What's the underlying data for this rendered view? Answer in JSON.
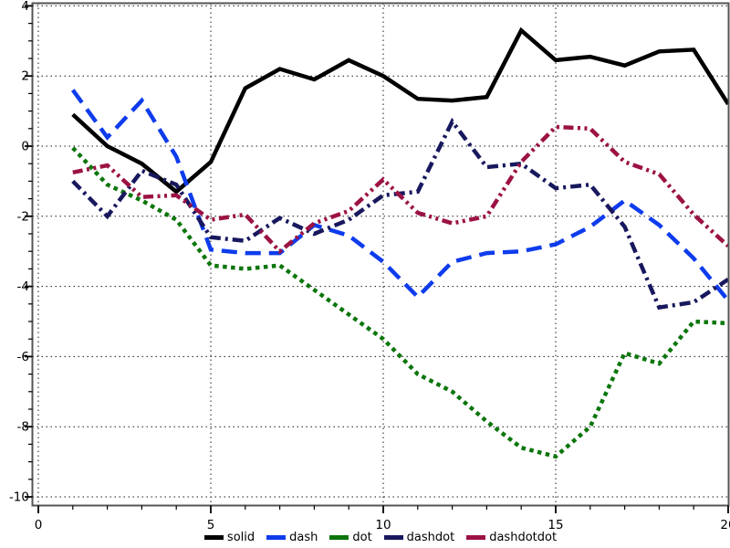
{
  "chart_data": {
    "type": "line",
    "title": "",
    "xlabel": "",
    "ylabel": "",
    "xlim": [
      -0.17,
      20.02
    ],
    "ylim": [
      -10.25,
      4.08
    ],
    "grid": true,
    "grid_style": "dotted",
    "legend_position": "bottom-center",
    "x_ticks_major": [
      0,
      5,
      10,
      15,
      20
    ],
    "x_tick_minor_step": 1,
    "y_ticks_major": [
      4,
      2,
      0,
      -2,
      -4,
      -6,
      -8,
      -10
    ],
    "y_tick_minor_step": 0.5,
    "x": [
      1,
      2,
      3,
      4,
      5,
      6,
      7,
      8,
      9,
      10,
      11,
      12,
      13,
      14,
      15,
      16,
      17,
      18,
      19,
      20
    ],
    "series": [
      {
        "name": "solid",
        "style": "solid",
        "color": "#000000",
        "values": [
          0.9,
          0.0,
          -0.5,
          -1.3,
          -0.45,
          1.65,
          2.2,
          1.9,
          2.45,
          2.0,
          1.35,
          1.3,
          1.4,
          3.3,
          2.45,
          2.55,
          2.3,
          2.7,
          2.75,
          1.2
        ]
      },
      {
        "name": "dash",
        "style": "dash",
        "color": "#0e3cec",
        "values": [
          1.6,
          0.25,
          1.3,
          -0.3,
          -2.95,
          -3.05,
          -3.05,
          -2.25,
          -2.55,
          -3.3,
          -4.3,
          -3.3,
          -3.05,
          -3.0,
          -2.8,
          -2.3,
          -1.55,
          -2.25,
          -3.2,
          -4.4
        ]
      },
      {
        "name": "dot",
        "style": "dot",
        "color": "#0c760c",
        "values": [
          -0.05,
          -1.1,
          -1.55,
          -2.1,
          -3.4,
          -3.5,
          -3.4,
          -4.1,
          -4.8,
          -5.5,
          -6.5,
          -7.0,
          -7.85,
          -8.6,
          -8.85,
          -8.0,
          -5.9,
          -6.2,
          -5.0,
          -5.05
        ]
      },
      {
        "name": "dashdot",
        "style": "dashdot",
        "color": "#18185e",
        "values": [
          -1.0,
          -2.0,
          -0.7,
          -1.1,
          -2.6,
          -2.7,
          -2.05,
          -2.5,
          -2.1,
          -1.4,
          -1.3,
          0.7,
          -0.6,
          -0.5,
          -1.2,
          -1.1,
          -2.3,
          -4.6,
          -4.45,
          -3.8
        ]
      },
      {
        "name": "dashdotdot",
        "style": "dashdotdot",
        "color": "#9c1244",
        "values": [
          -0.75,
          -0.55,
          -1.45,
          -1.4,
          -2.1,
          -1.95,
          -3.0,
          -2.2,
          -1.85,
          -0.95,
          -1.9,
          -2.2,
          -2.0,
          -0.45,
          0.55,
          0.5,
          -0.45,
          -0.8,
          -1.95,
          -2.85
        ]
      }
    ]
  },
  "axes": {
    "x_tick_labels": [
      "0",
      "5",
      "10",
      "15",
      "20"
    ],
    "y_tick_labels": [
      "4",
      "2",
      "0",
      "-2",
      "-4",
      "-6",
      "-8",
      "-10"
    ]
  },
  "legend": {
    "labels": [
      "solid",
      "dash",
      "dot",
      "dashdot",
      "dashdotdot"
    ]
  },
  "style_colors": {
    "frame": "#545454",
    "grid": "#1a1a1a",
    "tick": "#000000",
    "text": "#000000"
  }
}
